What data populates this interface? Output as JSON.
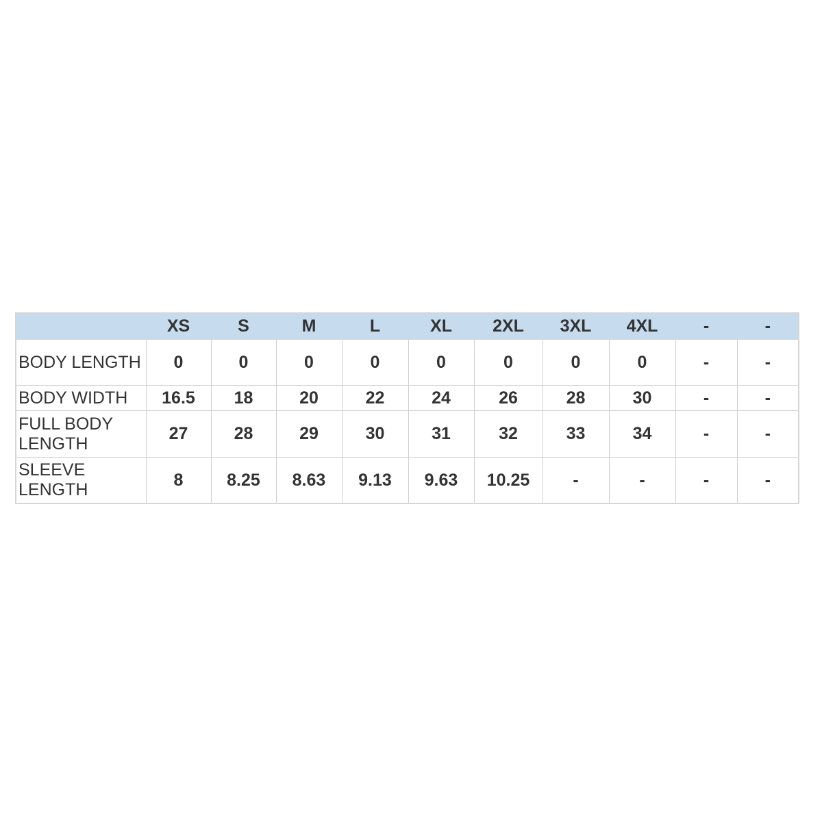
{
  "table": {
    "headers": [
      "",
      "XS",
      "S",
      "M",
      "L",
      "XL",
      "2XL",
      "3XL",
      "4XL",
      "-",
      "-"
    ],
    "rows": [
      {
        "label": "BODY LENGTH",
        "values": [
          "0",
          "0",
          "0",
          "0",
          "0",
          "0",
          "0",
          "0",
          "-",
          "-"
        ]
      },
      {
        "label": "BODY WIDTH",
        "values": [
          "16.5",
          "18",
          "20",
          "22",
          "24",
          "26",
          "28",
          "30",
          "-",
          "-"
        ]
      },
      {
        "label": "FULL BODY LENGTH",
        "values": [
          "27",
          "28",
          "29",
          "30",
          "31",
          "32",
          "33",
          "34",
          "-",
          "-"
        ]
      },
      {
        "label": "SLEEVE LENGTH",
        "values": [
          "8",
          "8.25",
          "8.63",
          "9.13",
          "9.63",
          "10.25",
          "-",
          "-",
          "-",
          "-"
        ]
      }
    ]
  },
  "colors": {
    "header_bg": "#c6dcee",
    "text": "#333333",
    "border": "#cfcfcf"
  }
}
